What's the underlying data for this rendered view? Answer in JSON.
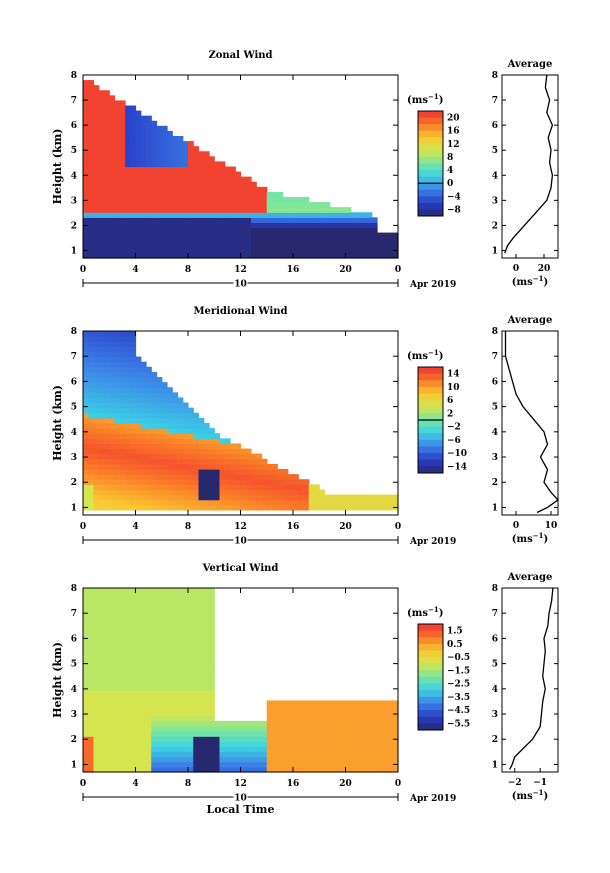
{
  "chart_data": [
    {
      "type": "heatmap",
      "title": "Zonal Wind",
      "ylabel": "Height (km)",
      "xlim": [
        0,
        24
      ],
      "ylim": [
        0.7,
        8
      ],
      "x_ticks": [
        "0",
        "4",
        "8",
        "12",
        "16",
        "20",
        "0"
      ],
      "y_ticks": [
        "1",
        "2",
        "3",
        "4",
        "5",
        "6",
        "7",
        "8"
      ],
      "date_marker": "10",
      "date_label": "Apr 2019",
      "colorbar": {
        "unit": "(ms",
        "unit_sup": "−1",
        "unit_close": ")",
        "ticks": [
          "20",
          "16",
          "12",
          "8",
          "4",
          "0",
          "−4",
          "−8"
        ],
        "range": [
          -10,
          22
        ],
        "zero_line": 0
      },
      "profile": {
        "title": "Average",
        "xlabel": "(ms",
        "xlabel_sup": "−1",
        "xlabel_close": ")",
        "x_ticks": [
          "0",
          "20"
        ],
        "xlim": [
          -10,
          30
        ],
        "heights": [
          0.9,
          1.2,
          1.5,
          2.0,
          2.5,
          3.0,
          3.5,
          4.0,
          4.5,
          5.0,
          5.5,
          6.0,
          6.5,
          7.0,
          7.5,
          8.0
        ],
        "values": [
          -8,
          -6,
          -2,
          6,
          14,
          22,
          25,
          26,
          24,
          25,
          23,
          26,
          22,
          24,
          21,
          22
        ]
      }
    },
    {
      "type": "heatmap",
      "title": "Meridional Wind",
      "ylabel": "Height (km)",
      "xlim": [
        0,
        24
      ],
      "ylim": [
        0.7,
        8
      ],
      "x_ticks": [
        "0",
        "4",
        "8",
        "12",
        "16",
        "20",
        "0"
      ],
      "y_ticks": [
        "1",
        "2",
        "3",
        "4",
        "5",
        "6",
        "7",
        "8"
      ],
      "date_marker": "10",
      "date_label": "Apr 2019",
      "colorbar": {
        "unit": "(ms",
        "unit_sup": "−1",
        "unit_close": ")",
        "ticks": [
          "14",
          "10",
          "6",
          "2",
          "−2",
          "−6",
          "−10",
          "−14"
        ],
        "range": [
          -16,
          16
        ],
        "zero_line": 0
      },
      "profile": {
        "title": "Average",
        "xlabel": "(ms",
        "xlabel_sup": "−1",
        "xlabel_close": ")",
        "x_ticks": [
          "0",
          "10"
        ],
        "xlim": [
          -4,
          12
        ],
        "heights": [
          0.8,
          1.0,
          1.3,
          1.6,
          2.0,
          2.5,
          3.0,
          3.5,
          4.0,
          4.5,
          5.0,
          5.5,
          6.0,
          6.5,
          7.0,
          8.0
        ],
        "values": [
          6,
          9,
          12,
          10,
          8,
          9,
          7,
          9,
          8,
          5,
          2,
          0,
          -1,
          -2,
          -3,
          -3
        ]
      }
    },
    {
      "type": "heatmap",
      "title": "Vertical Wind",
      "ylabel": "Height (km)",
      "xlabel": "Local Time",
      "xlim": [
        0,
        24
      ],
      "ylim": [
        0.7,
        8
      ],
      "x_ticks": [
        "0",
        "4",
        "8",
        "12",
        "16",
        "20",
        "0"
      ],
      "y_ticks": [
        "1",
        "2",
        "3",
        "4",
        "5",
        "6",
        "7",
        "8"
      ],
      "date_marker": "10",
      "date_label": "Apr 2019",
      "colorbar": {
        "unit": "(ms",
        "unit_sup": "−1",
        "unit_close": ")",
        "ticks": [
          "1.5",
          "0.5",
          "−0.5",
          "−1.5",
          "−2.5",
          "−3.5",
          "−4.5",
          "−5.5"
        ],
        "range": [
          -6,
          2
        ]
      },
      "profile": {
        "title": "Average",
        "xlabel": "(ms",
        "xlabel_sup": "−1",
        "xlabel_close": ")",
        "x_ticks": [
          "−2",
          "−1"
        ],
        "xlim": [
          -2.5,
          -0.3
        ],
        "heights": [
          0.8,
          1.0,
          1.3,
          1.6,
          2.0,
          2.5,
          3.0,
          3.5,
          4.0,
          4.5,
          5.0,
          5.5,
          6.0,
          6.5,
          7.0,
          7.5,
          8.0
        ],
        "values": [
          -2.2,
          -2.1,
          -2.0,
          -1.7,
          -1.3,
          -1.0,
          -0.95,
          -0.9,
          -0.8,
          -0.9,
          -0.85,
          -0.8,
          -0.85,
          -0.7,
          -0.65,
          -0.55,
          -0.5
        ]
      }
    }
  ]
}
